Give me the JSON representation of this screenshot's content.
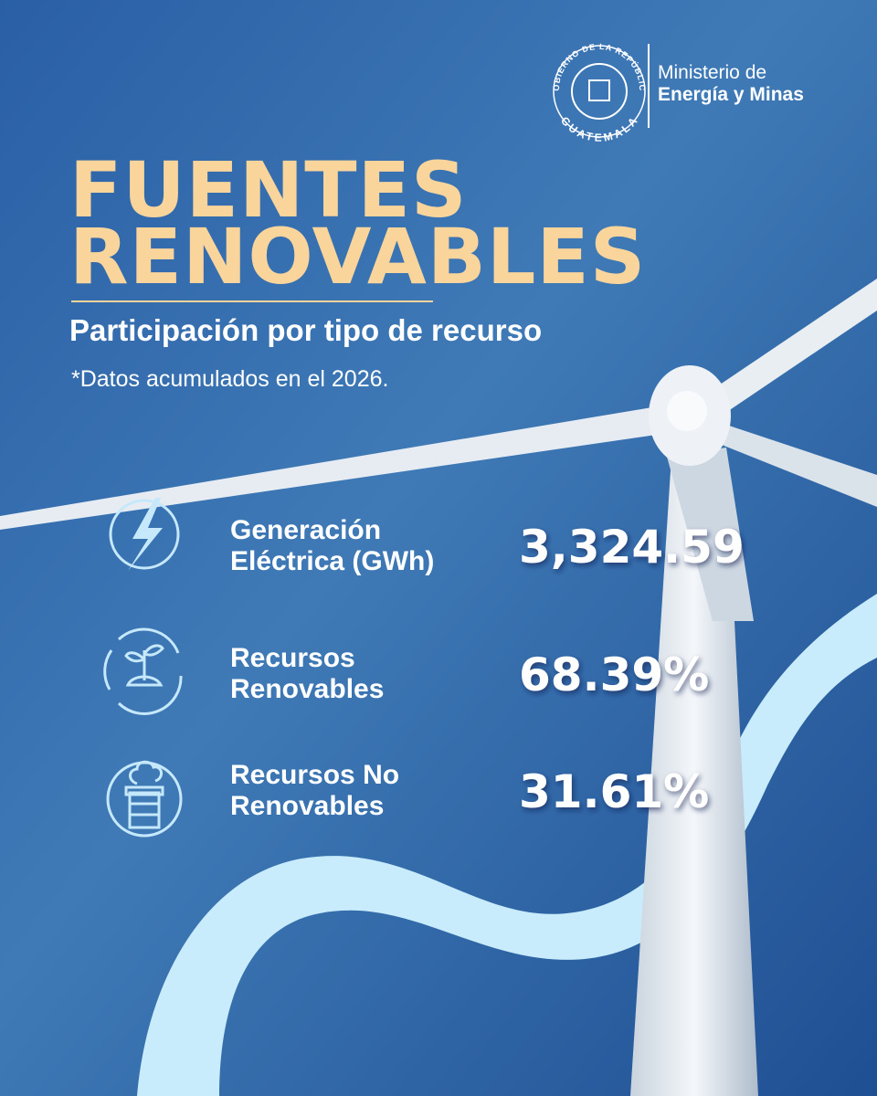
{
  "header": {
    "seal_top": "GOBIERNO DE LA REPÚBLICA",
    "seal_bottom": "GUATEMALA",
    "ministry_line1": "Ministerio de",
    "ministry_line2": "Energía y Minas"
  },
  "title": {
    "line1": "FUENTES",
    "line2": "RENOVABLES"
  },
  "subtitle": "Participación por tipo de recurso",
  "note": "*Datos acumulados en el 2026.",
  "items": [
    {
      "label": [
        "Generación",
        "Eléctrica (GWh)"
      ],
      "value": "3,324.59"
    },
    {
      "label": [
        "Recursos",
        "Renovables"
      ],
      "value": "68.39%"
    },
    {
      "label": [
        "Recursos No",
        "Renovables"
      ],
      "value": "31.61%"
    }
  ]
}
